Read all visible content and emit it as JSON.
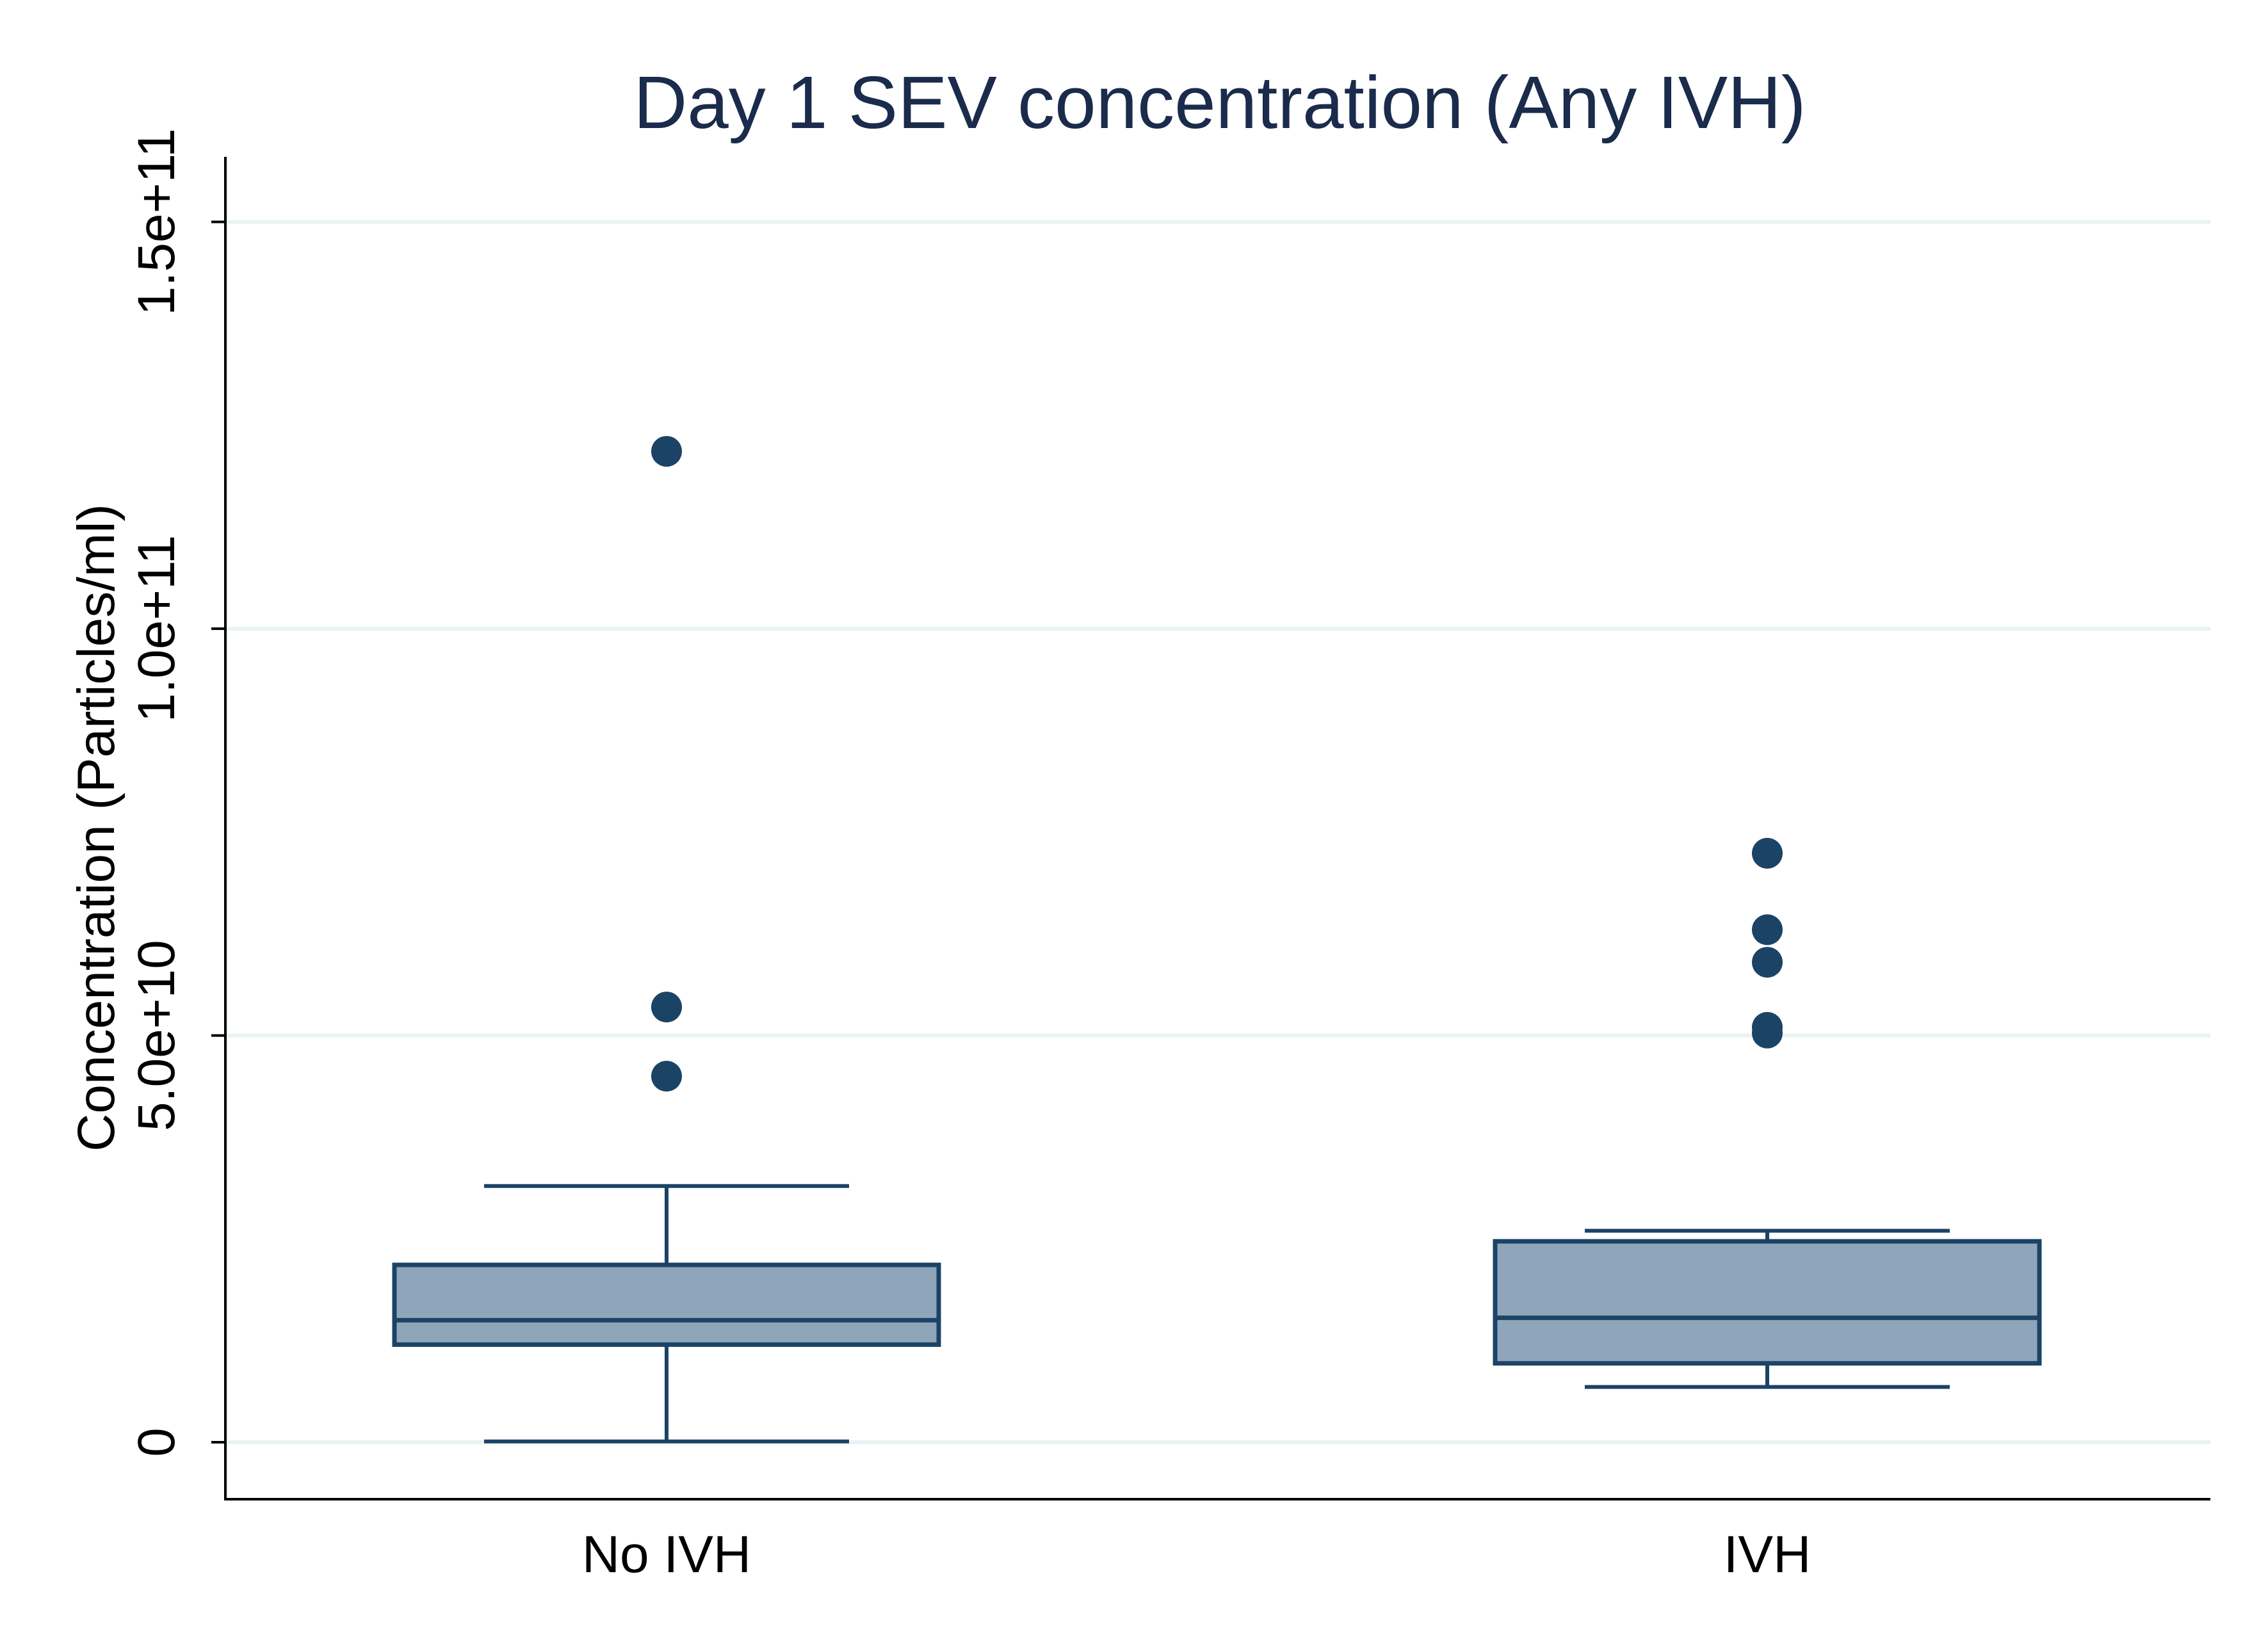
{
  "chart_data": {
    "type": "box",
    "title": "Day 1 SEV concentration (Any IVH)",
    "ylabel": "Concentration (Particles/ml)",
    "xlabel": "",
    "ylim": [
      -7000000000,
      158000000000
    ],
    "yticks": [
      0,
      50000000000,
      100000000000,
      150000000000
    ],
    "ytick_labels": [
      "0",
      "5.0e+10",
      "1.0e+11",
      "1.5e+11"
    ],
    "grid": true,
    "categories": [
      "No IVH",
      "IVH"
    ],
    "boxes": [
      {
        "name": "No IVH",
        "whisker_low": 100000000,
        "q1": 12000000000,
        "median": 15000000000,
        "q3": 21800000000,
        "whisker_high": 31500000000,
        "outliers": [
          45000000000,
          53500000000,
          121800000000
        ]
      },
      {
        "name": "IVH",
        "whisker_low": 6800000000,
        "q1": 9700000000,
        "median": 15300000000,
        "q3": 24700000000,
        "whisker_high": 26000000000,
        "outliers": [
          50300000000,
          51000000000,
          59000000000,
          63000000000,
          72400000000
        ]
      }
    ],
    "colors": {
      "box_fill": "#8fa5ba",
      "box_stroke": "#1b4366",
      "marker": "#1b4366",
      "grid": "#eaf2f3",
      "title": "#1a2b4c"
    }
  }
}
